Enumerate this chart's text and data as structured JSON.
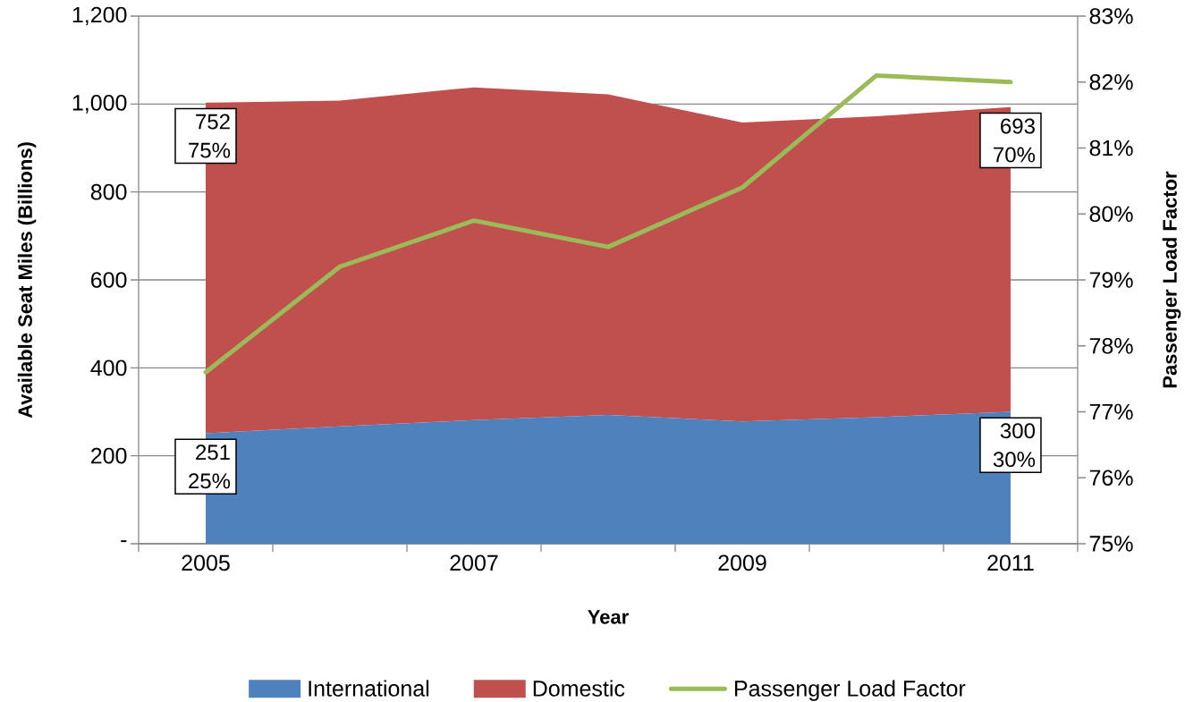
{
  "chart_data": {
    "type": "area",
    "stacked": true,
    "xlabel": "Year",
    "ylabel": "Available Seat Miles (Billions)",
    "y2label": "Passenger Load Factor",
    "categories": [
      "2005",
      null,
      "2007",
      null,
      "2009",
      null,
      "2011"
    ],
    "series": [
      {
        "name": "International",
        "color": "#4f81bd",
        "values": [
          251,
          267,
          281,
          293,
          278,
          288,
          300
        ],
        "value_labels": [
          "251 25%",
          null,
          null,
          null,
          null,
          null,
          "300 30%"
        ]
      },
      {
        "name": "Domestic",
        "color": "#c0504d",
        "values": [
          752,
          741,
          757,
          729,
          680,
          684,
          693
        ],
        "value_labels": [
          "752 75%",
          null,
          null,
          null,
          null,
          null,
          "693 70%"
        ]
      },
      {
        "name": "Passenger Load Factor",
        "type": "line",
        "axis": "y2",
        "color": "#9bbb59",
        "values": [
          77.6,
          79.2,
          79.9,
          79.5,
          80.4,
          82.1,
          82.0
        ]
      }
    ],
    "ylim": [
      0,
      1200
    ],
    "yticks": [
      {
        "value": 0,
        "label": "-"
      },
      200,
      400,
      600,
      800,
      {
        "value": 1000,
        "label": "1,000"
      },
      {
        "value": 1200,
        "label": "1,200"
      }
    ],
    "y2lim": [
      75,
      83
    ],
    "y2ticks": [
      {
        "value": 75,
        "label": "75%"
      },
      {
        "value": 76,
        "label": "76%"
      },
      {
        "value": 77,
        "label": "77%"
      },
      {
        "value": 78,
        "label": "78%"
      },
      {
        "value": 79,
        "label": "79%"
      },
      {
        "value": 80,
        "label": "80%"
      },
      {
        "value": 81,
        "label": "81%"
      },
      {
        "value": 82,
        "label": "82%"
      },
      {
        "value": 83,
        "label": "83%"
      }
    ],
    "grid": "y",
    "legend": "bottom",
    "line_style": "solid"
  }
}
